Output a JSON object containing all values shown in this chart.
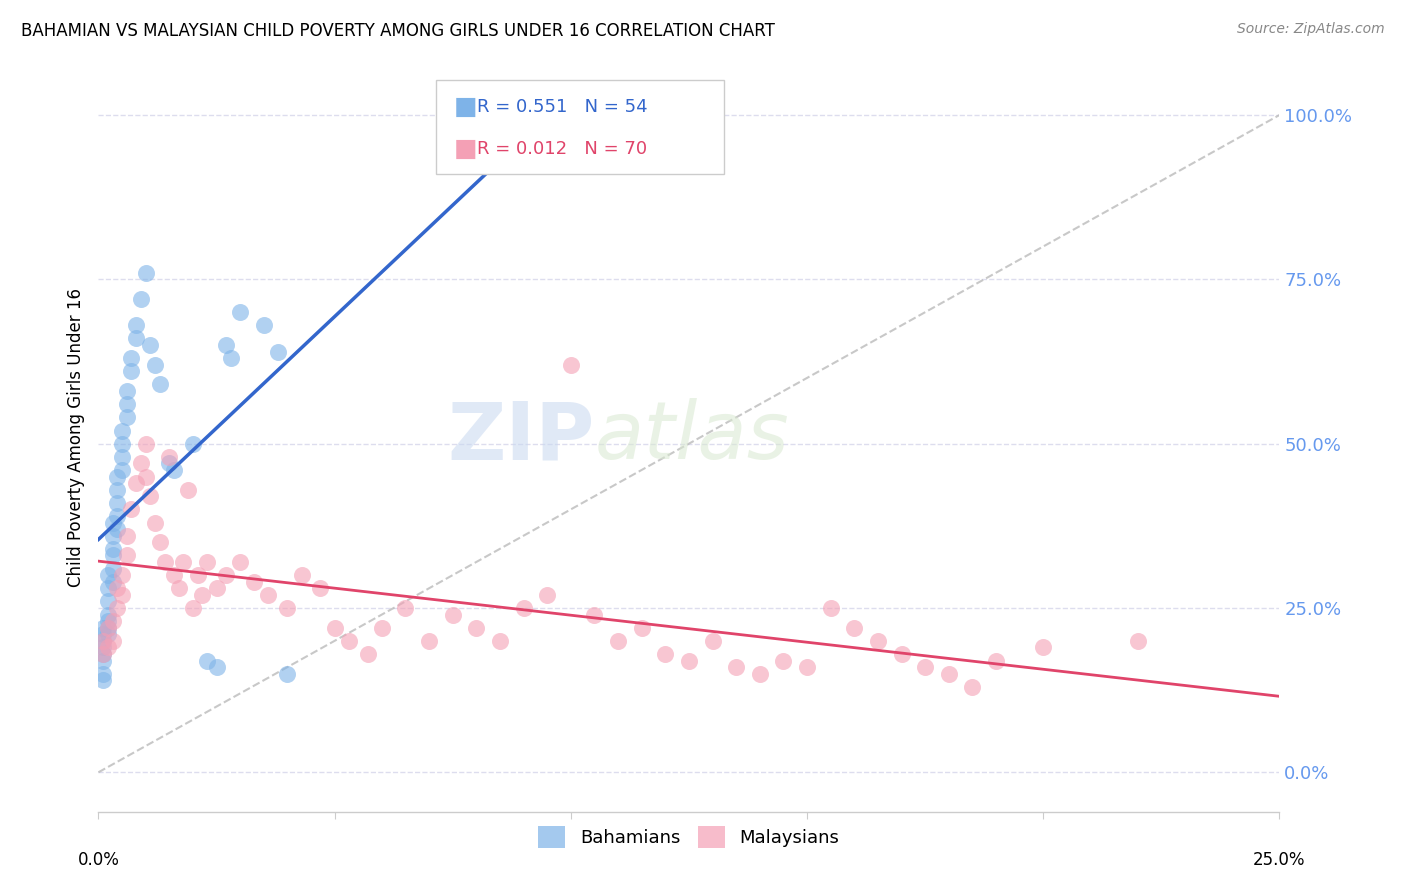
{
  "title": "BAHAMIAN VS MALAYSIAN CHILD POVERTY AMONG GIRLS UNDER 16 CORRELATION CHART",
  "source": "Source: ZipAtlas.com",
  "ylabel": "Child Poverty Among Girls Under 16",
  "ytick_values": [
    0.0,
    0.25,
    0.5,
    0.75,
    1.0
  ],
  "xmin": 0.0,
  "xmax": 0.25,
  "ymin": -0.06,
  "ymax": 1.08,
  "watermark_zip": "ZIP",
  "watermark_atlas": "atlas",
  "legend_label1": "Bahamians",
  "legend_label2": "Malaysians",
  "color_blue": "#7EB3E8",
  "color_pink": "#F4A0B5",
  "color_blue_line": "#3366CC",
  "color_pink_line": "#E0446A",
  "color_gray_dash": "#BBBBBB",
  "color_ytick_right": "#6699EE",
  "color_grid": "#DDDDEE",
  "bahamian_x": [
    0.001,
    0.001,
    0.001,
    0.001,
    0.001,
    0.001,
    0.001,
    0.001,
    0.002,
    0.002,
    0.002,
    0.002,
    0.002,
    0.002,
    0.002,
    0.003,
    0.003,
    0.003,
    0.003,
    0.003,
    0.003,
    0.004,
    0.004,
    0.004,
    0.004,
    0.004,
    0.005,
    0.005,
    0.005,
    0.005,
    0.006,
    0.006,
    0.006,
    0.007,
    0.007,
    0.008,
    0.008,
    0.009,
    0.01,
    0.011,
    0.012,
    0.013,
    0.015,
    0.016,
    0.02,
    0.023,
    0.025,
    0.027,
    0.028,
    0.03,
    0.035,
    0.038,
    0.04
  ],
  "bahamian_y": [
    0.2,
    0.22,
    0.21,
    0.19,
    0.18,
    0.17,
    0.15,
    0.14,
    0.3,
    0.28,
    0.26,
    0.24,
    0.23,
    0.21,
    0.22,
    0.38,
    0.36,
    0.34,
    0.33,
    0.31,
    0.29,
    0.45,
    0.43,
    0.41,
    0.39,
    0.37,
    0.52,
    0.5,
    0.48,
    0.46,
    0.58,
    0.56,
    0.54,
    0.63,
    0.61,
    0.68,
    0.66,
    0.72,
    0.76,
    0.65,
    0.62,
    0.59,
    0.47,
    0.46,
    0.5,
    0.17,
    0.16,
    0.65,
    0.63,
    0.7,
    0.68,
    0.64,
    0.15
  ],
  "malaysian_x": [
    0.001,
    0.001,
    0.002,
    0.002,
    0.003,
    0.003,
    0.004,
    0.004,
    0.005,
    0.005,
    0.006,
    0.006,
    0.007,
    0.008,
    0.009,
    0.01,
    0.01,
    0.011,
    0.012,
    0.013,
    0.014,
    0.015,
    0.016,
    0.017,
    0.018,
    0.019,
    0.02,
    0.021,
    0.022,
    0.023,
    0.025,
    0.027,
    0.03,
    0.033,
    0.036,
    0.04,
    0.043,
    0.047,
    0.05,
    0.053,
    0.057,
    0.06,
    0.065,
    0.07,
    0.075,
    0.08,
    0.085,
    0.09,
    0.095,
    0.1,
    0.105,
    0.11,
    0.115,
    0.12,
    0.125,
    0.13,
    0.135,
    0.14,
    0.145,
    0.15,
    0.155,
    0.16,
    0.165,
    0.17,
    0.175,
    0.18,
    0.185,
    0.19,
    0.2,
    0.22
  ],
  "malaysian_y": [
    0.2,
    0.18,
    0.22,
    0.19,
    0.23,
    0.2,
    0.25,
    0.28,
    0.27,
    0.3,
    0.33,
    0.36,
    0.4,
    0.44,
    0.47,
    0.5,
    0.45,
    0.42,
    0.38,
    0.35,
    0.32,
    0.48,
    0.3,
    0.28,
    0.32,
    0.43,
    0.25,
    0.3,
    0.27,
    0.32,
    0.28,
    0.3,
    0.32,
    0.29,
    0.27,
    0.25,
    0.3,
    0.28,
    0.22,
    0.2,
    0.18,
    0.22,
    0.25,
    0.2,
    0.24,
    0.22,
    0.2,
    0.25,
    0.27,
    0.62,
    0.24,
    0.2,
    0.22,
    0.18,
    0.17,
    0.2,
    0.16,
    0.15,
    0.17,
    0.16,
    0.25,
    0.22,
    0.2,
    0.18,
    0.16,
    0.15,
    0.13,
    0.17,
    0.19,
    0.2
  ]
}
